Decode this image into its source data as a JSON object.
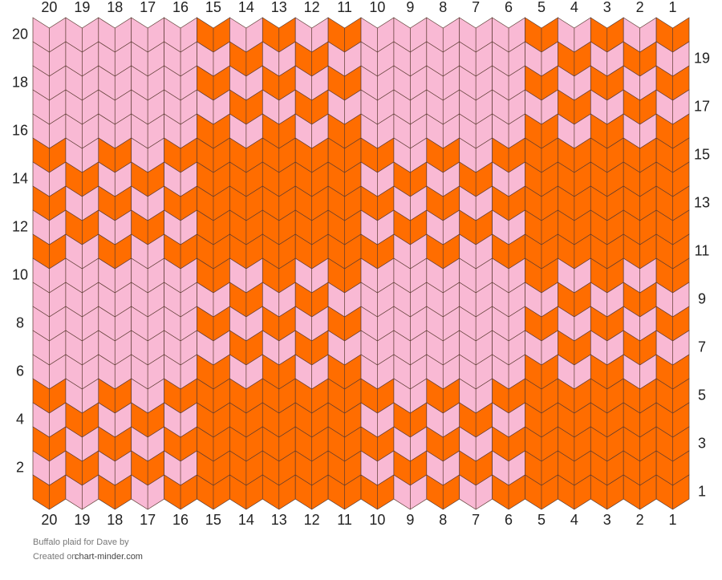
{
  "pattern": {
    "palette": [
      "#f9b9d4",
      "#ff6d00"
    ],
    "columns": [
      20,
      19,
      18,
      17,
      16,
      15,
      14,
      13,
      12,
      11,
      10,
      9,
      8,
      7,
      6,
      5,
      4,
      3,
      2,
      1
    ],
    "rows": [
      {
        "label": 20,
        "stitches": [
          0,
          0,
          0,
          0,
          0,
          1,
          0,
          1,
          0,
          1,
          0,
          0,
          0,
          0,
          0,
          1,
          0,
          1,
          0,
          1
        ]
      },
      {
        "label": 19,
        "stitches": [
          0,
          0,
          0,
          0,
          0,
          0,
          1,
          0,
          1,
          0,
          0,
          0,
          0,
          0,
          0,
          0,
          1,
          0,
          1,
          0
        ]
      },
      {
        "label": 18,
        "stitches": [
          0,
          0,
          0,
          0,
          0,
          1,
          0,
          1,
          0,
          1,
          0,
          0,
          0,
          0,
          0,
          1,
          0,
          1,
          0,
          1
        ]
      },
      {
        "label": 17,
        "stitches": [
          0,
          0,
          0,
          0,
          0,
          0,
          1,
          0,
          1,
          0,
          0,
          0,
          0,
          0,
          0,
          0,
          1,
          0,
          1,
          0
        ]
      },
      {
        "label": 16,
        "stitches": [
          0,
          0,
          0,
          0,
          0,
          1,
          0,
          1,
          0,
          1,
          0,
          0,
          0,
          0,
          0,
          1,
          0,
          1,
          0,
          1
        ]
      },
      {
        "label": 15,
        "stitches": [
          1,
          0,
          1,
          0,
          1,
          1,
          1,
          1,
          1,
          1,
          1,
          0,
          1,
          0,
          1,
          1,
          1,
          1,
          1,
          1
        ]
      },
      {
        "label": 14,
        "stitches": [
          0,
          1,
          0,
          1,
          0,
          1,
          1,
          1,
          1,
          1,
          0,
          1,
          0,
          1,
          0,
          1,
          1,
          1,
          1,
          1
        ]
      },
      {
        "label": 13,
        "stitches": [
          1,
          0,
          1,
          0,
          1,
          1,
          1,
          1,
          1,
          1,
          1,
          0,
          1,
          0,
          1,
          1,
          1,
          1,
          1,
          1
        ]
      },
      {
        "label": 12,
        "stitches": [
          0,
          1,
          0,
          1,
          0,
          1,
          1,
          1,
          1,
          1,
          0,
          1,
          0,
          1,
          0,
          1,
          1,
          1,
          1,
          1
        ]
      },
      {
        "label": 11,
        "stitches": [
          1,
          0,
          1,
          0,
          1,
          1,
          1,
          1,
          1,
          1,
          1,
          0,
          1,
          0,
          1,
          1,
          1,
          1,
          1,
          1
        ]
      },
      {
        "label": 10,
        "stitches": [
          0,
          0,
          0,
          0,
          0,
          1,
          0,
          1,
          0,
          1,
          0,
          0,
          0,
          0,
          0,
          1,
          0,
          1,
          0,
          1
        ]
      },
      {
        "label": 9,
        "stitches": [
          0,
          0,
          0,
          0,
          0,
          0,
          1,
          0,
          1,
          0,
          0,
          0,
          0,
          0,
          0,
          0,
          1,
          0,
          1,
          0
        ]
      },
      {
        "label": 8,
        "stitches": [
          0,
          0,
          0,
          0,
          0,
          1,
          0,
          1,
          0,
          1,
          0,
          0,
          0,
          0,
          0,
          1,
          0,
          1,
          0,
          1
        ]
      },
      {
        "label": 7,
        "stitches": [
          0,
          0,
          0,
          0,
          0,
          0,
          1,
          0,
          1,
          0,
          0,
          0,
          0,
          0,
          0,
          0,
          1,
          0,
          1,
          0
        ]
      },
      {
        "label": 6,
        "stitches": [
          0,
          0,
          0,
          0,
          0,
          1,
          0,
          1,
          0,
          1,
          0,
          0,
          0,
          0,
          0,
          1,
          0,
          1,
          0,
          1
        ]
      },
      {
        "label": 5,
        "stitches": [
          1,
          0,
          1,
          0,
          1,
          1,
          1,
          1,
          1,
          1,
          1,
          0,
          1,
          0,
          1,
          1,
          1,
          1,
          1,
          1
        ]
      },
      {
        "label": 4,
        "stitches": [
          0,
          1,
          0,
          1,
          0,
          1,
          1,
          1,
          1,
          1,
          0,
          1,
          0,
          1,
          0,
          1,
          1,
          1,
          1,
          1
        ]
      },
      {
        "label": 3,
        "stitches": [
          1,
          0,
          1,
          0,
          1,
          1,
          1,
          1,
          1,
          1,
          1,
          0,
          1,
          0,
          1,
          1,
          1,
          1,
          1,
          1
        ]
      },
      {
        "label": 2,
        "stitches": [
          0,
          1,
          0,
          1,
          0,
          1,
          1,
          1,
          1,
          1,
          0,
          1,
          0,
          1,
          0,
          1,
          1,
          1,
          1,
          1
        ]
      },
      {
        "label": 1,
        "stitches": [
          1,
          0,
          1,
          0,
          1,
          1,
          1,
          1,
          1,
          1,
          1,
          0,
          1,
          0,
          1,
          1,
          1,
          1,
          1,
          1
        ]
      }
    ]
  },
  "footer": {
    "title": "Buffalo plaid for Dave by",
    "created_prefix": "Created on",
    "site": "chart-minder.com"
  }
}
